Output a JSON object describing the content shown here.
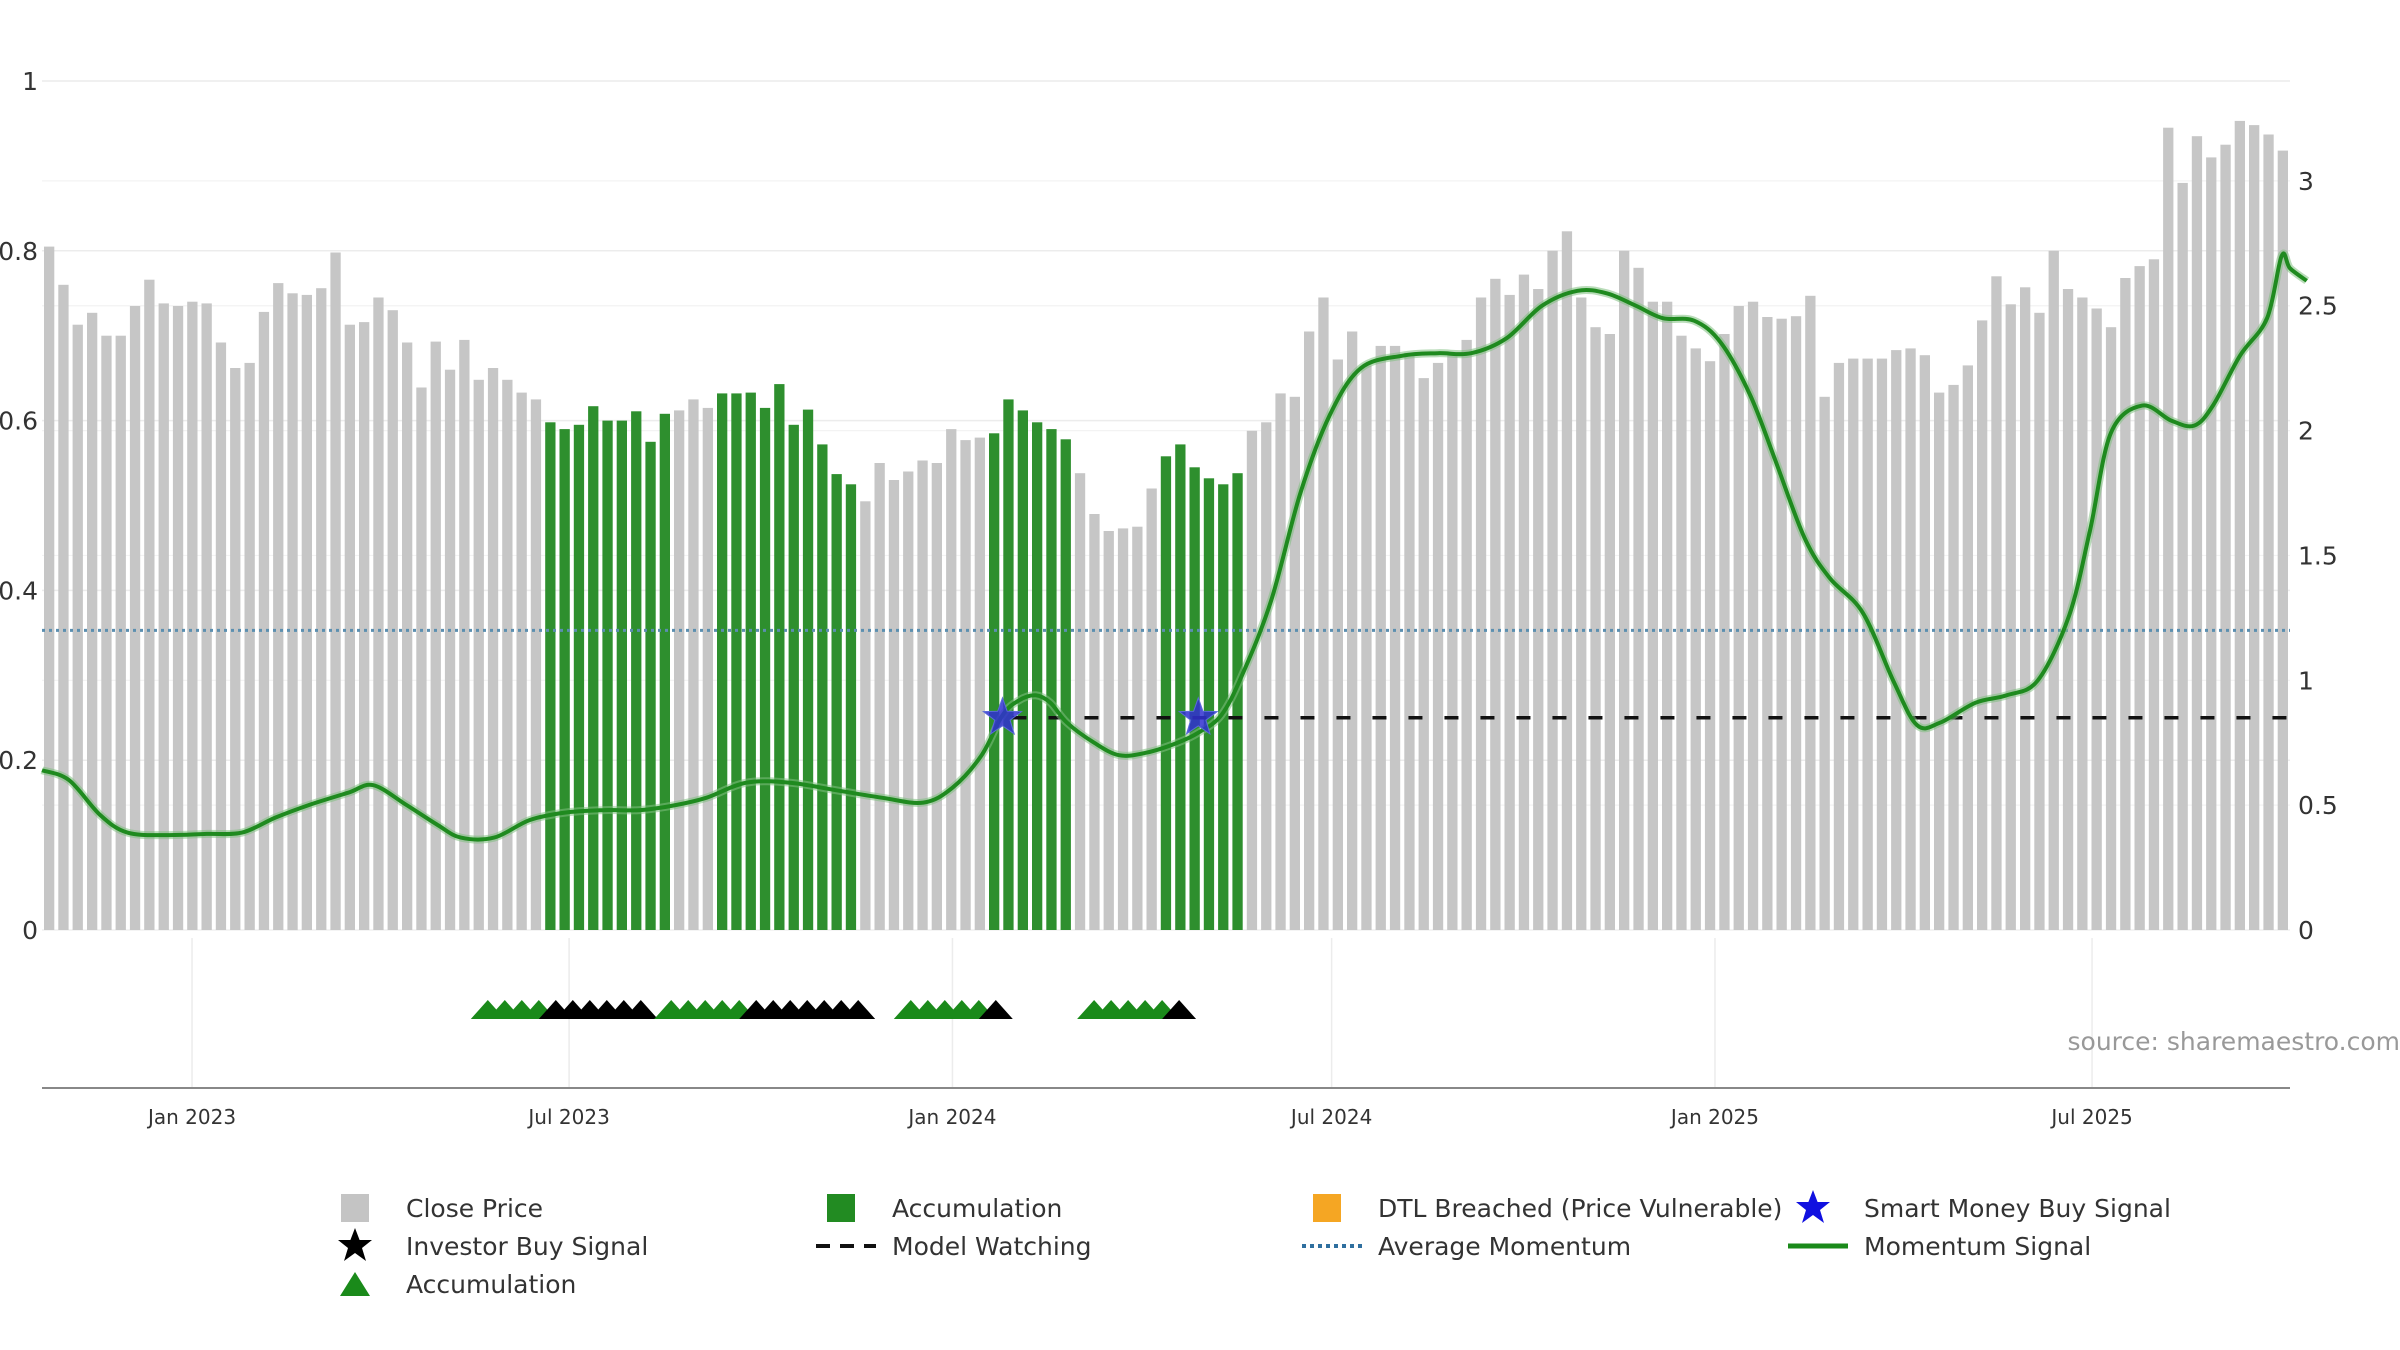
{
  "chart_data": {
    "type": "bar",
    "source_note": "source: sharemaestro.com",
    "y_left": {
      "ticks": [
        "0",
        "0.2",
        "0.4",
        "0.6",
        "0.8",
        "1"
      ],
      "range": [
        0,
        1
      ]
    },
    "y_right": {
      "ticks": [
        "0",
        "0.5",
        "1",
        "1.5",
        "2",
        "2.5",
        "3"
      ],
      "range": [
        0,
        3.4
      ]
    },
    "x_ticks": [
      {
        "label": "Jan 2023",
        "date": "2023-01-01"
      },
      {
        "label": "Jul 2023",
        "date": "2023-07-01"
      },
      {
        "label": "Jan 2024",
        "date": "2024-01-01"
      },
      {
        "label": "Jul 2024",
        "date": "2024-07-01"
      },
      {
        "label": "Jan 2025",
        "date": "2025-01-01"
      },
      {
        "label": "Jul 2025",
        "date": "2025-07-01"
      }
    ],
    "date_range": [
      "2022-10-21",
      "2025-10-04"
    ],
    "grid": true,
    "colors": {
      "close_price": "#c4c4c4",
      "accumulation": "#2f8f2f",
      "dtl_breached": "#f5a623",
      "smart_money": "#1a1ad6",
      "investor_buy": "#111111",
      "avg_momentum": "#5b8fb0",
      "momentum": "#1f8a1f"
    },
    "close_price": {
      "name": "Close Price",
      "values": [
        0.805,
        0.76,
        0.713,
        0.727,
        0.7,
        0.7,
        0.735,
        0.766,
        0.738,
        0.735,
        0.74,
        0.738,
        0.692,
        0.662,
        0.668,
        0.728,
        0.762,
        0.75,
        0.748,
        0.756,
        0.798,
        0.713,
        0.716,
        0.745,
        0.73,
        0.692,
        0.639,
        0.693,
        0.66,
        0.695,
        0.648,
        0.662,
        0.648,
        0.633,
        0.625,
        0.598,
        0.59,
        0.595,
        0.617,
        0.6,
        0.6,
        0.611,
        0.575,
        0.608,
        0.612,
        0.625,
        0.615,
        0.632,
        0.632,
        0.633,
        0.615,
        0.643,
        0.595,
        0.613,
        0.572,
        0.537,
        0.525,
        0.505,
        0.55,
        0.53,
        0.54,
        0.553,
        0.55,
        0.59,
        0.577,
        0.58,
        0.585,
        0.625,
        0.612,
        0.598,
        0.59,
        0.578,
        0.538,
        0.49,
        0.47,
        0.473,
        0.475,
        0.52,
        0.558,
        0.572,
        0.545,
        0.532,
        0.525,
        0.538,
        0.588,
        0.598,
        0.632,
        0.628,
        0.705,
        0.745,
        0.672,
        0.705,
        0.665,
        0.688,
        0.688,
        0.68,
        0.65,
        0.668,
        0.68,
        0.695,
        0.745,
        0.767,
        0.748,
        0.772,
        0.755,
        0.8,
        0.823,
        0.745,
        0.71,
        0.702,
        0.8,
        0.78,
        0.74,
        0.74,
        0.7,
        0.685,
        0.67,
        0.702,
        0.735,
        0.74,
        0.722,
        0.72,
        0.723,
        0.747,
        0.628,
        0.668,
        0.673,
        0.673,
        0.673,
        0.683,
        0.685,
        0.677,
        0.633,
        0.642,
        0.665,
        0.718,
        0.77,
        0.737,
        0.757,
        0.727,
        0.8,
        0.755,
        0.745,
        0.732,
        0.71,
        0.768,
        0.782,
        0.79,
        0.945,
        0.88,
        0.935,
        0.91,
        0.925,
        0.953,
        0.948,
        0.937,
        0.918
      ]
    },
    "accumulation_ranges": [
      [
        35,
        43
      ],
      [
        47,
        56
      ],
      [
        66,
        71
      ],
      [
        78,
        83
      ]
    ],
    "triangle_groups": [
      {
        "start": "2023-05-23",
        "green": 4,
        "black": 6
      },
      {
        "start": "2023-08-19",
        "green": 5,
        "black": 7
      },
      {
        "start": "2023-12-12",
        "green": 5,
        "black": 1
      },
      {
        "start": "2024-03-09",
        "green": 5,
        "black": 1
      }
    ],
    "smart_money_signals": [
      {
        "date": "2024-01-25",
        "value": 0.85
      },
      {
        "date": "2024-04-28",
        "value": 0.85
      }
    ],
    "model_watching": {
      "start": "2024-01-25",
      "end": "2025-10-04",
      "value": 0.85
    },
    "average_momentum": 1.2,
    "momentum": {
      "name": "Momentum Signal",
      "points": [
        [
          "2022-10-21",
          0.64
        ],
        [
          "2022-11-03",
          0.6
        ],
        [
          "2022-11-18",
          0.46
        ],
        [
          "2022-12-01",
          0.39
        ],
        [
          "2022-12-20",
          0.38
        ],
        [
          "2023-01-08",
          0.385
        ],
        [
          "2023-01-25",
          0.39
        ],
        [
          "2023-02-10",
          0.45
        ],
        [
          "2023-02-26",
          0.5
        ],
        [
          "2023-03-17",
          0.55
        ],
        [
          "2023-03-29",
          0.58
        ],
        [
          "2023-04-14",
          0.5
        ],
        [
          "2023-04-29",
          0.42
        ],
        [
          "2023-05-10",
          0.37
        ],
        [
          "2023-05-26",
          0.37
        ],
        [
          "2023-06-12",
          0.44
        ],
        [
          "2023-06-29",
          0.47
        ],
        [
          "2023-07-18",
          0.48
        ],
        [
          "2023-08-04",
          0.48
        ],
        [
          "2023-08-21",
          0.5
        ],
        [
          "2023-09-05",
          0.53
        ],
        [
          "2023-09-24",
          0.59
        ],
        [
          "2023-10-15",
          0.59
        ],
        [
          "2023-11-06",
          0.56
        ],
        [
          "2023-11-28",
          0.53
        ],
        [
          "2023-12-18",
          0.51
        ],
        [
          "2024-01-01",
          0.57
        ],
        [
          "2024-01-15",
          0.7
        ],
        [
          "2024-01-25",
          0.86
        ],
        [
          "2024-02-02",
          0.92
        ],
        [
          "2024-02-10",
          0.94
        ],
        [
          "2024-02-17",
          0.91
        ],
        [
          "2024-02-25",
          0.83
        ],
        [
          "2024-03-09",
          0.75
        ],
        [
          "2024-03-21",
          0.7
        ],
        [
          "2024-04-03",
          0.71
        ],
        [
          "2024-04-18",
          0.75
        ],
        [
          "2024-04-28",
          0.79
        ],
        [
          "2024-05-09",
          0.86
        ],
        [
          "2024-05-19",
          1.02
        ],
        [
          "2024-06-02",
          1.32
        ],
        [
          "2024-06-16",
          1.75
        ],
        [
          "2024-06-30",
          2.06
        ],
        [
          "2024-07-15",
          2.25
        ],
        [
          "2024-08-04",
          2.3
        ],
        [
          "2024-08-21",
          2.31
        ],
        [
          "2024-09-06",
          2.31
        ],
        [
          "2024-09-23",
          2.37
        ],
        [
          "2024-10-10",
          2.5
        ],
        [
          "2024-10-27",
          2.56
        ],
        [
          "2024-11-10",
          2.55
        ],
        [
          "2024-11-24",
          2.5
        ],
        [
          "2024-12-07",
          2.45
        ],
        [
          "2024-12-22",
          2.44
        ],
        [
          "2025-01-04",
          2.35
        ],
        [
          "2025-01-18",
          2.14
        ],
        [
          "2025-01-30",
          1.88
        ],
        [
          "2025-02-13",
          1.57
        ],
        [
          "2025-02-25",
          1.41
        ],
        [
          "2025-03-13",
          1.27
        ],
        [
          "2025-03-28",
          0.99
        ],
        [
          "2025-04-08",
          0.82
        ],
        [
          "2025-04-19",
          0.83
        ],
        [
          "2025-05-06",
          0.91
        ],
        [
          "2025-05-21",
          0.94
        ],
        [
          "2025-06-05",
          1.0
        ],
        [
          "2025-06-20",
          1.26
        ],
        [
          "2025-06-30",
          1.6
        ],
        [
          "2025-07-10",
          1.99
        ],
        [
          "2025-07-25",
          2.1
        ],
        [
          "2025-08-08",
          2.04
        ],
        [
          "2025-08-19",
          2.02
        ],
        [
          "2025-08-28",
          2.1
        ],
        [
          "2025-09-10",
          2.3
        ],
        [
          "2025-09-23",
          2.45
        ],
        [
          "2025-09-30",
          2.7
        ],
        [
          "2025-10-04",
          2.65
        ],
        [
          "2025-10-12",
          2.6
        ]
      ]
    },
    "legend": [
      {
        "label": "Close Price",
        "symbol": "gray-square"
      },
      {
        "label": "Accumulation",
        "symbol": "green-square"
      },
      {
        "label": "DTL Breached (Price Vulnerable)",
        "symbol": "orange-square"
      },
      {
        "label": "Smart Money Buy Signal",
        "symbol": "blue-star"
      },
      {
        "label": "Investor Buy Signal",
        "symbol": "black-star"
      },
      {
        "label": "Model Watching",
        "symbol": "black-dash"
      },
      {
        "label": "Average Momentum",
        "symbol": "blue-dot"
      },
      {
        "label": "Momentum Signal",
        "symbol": "green-line"
      },
      {
        "label": "Accumulation",
        "symbol": "green-triangle"
      }
    ]
  }
}
